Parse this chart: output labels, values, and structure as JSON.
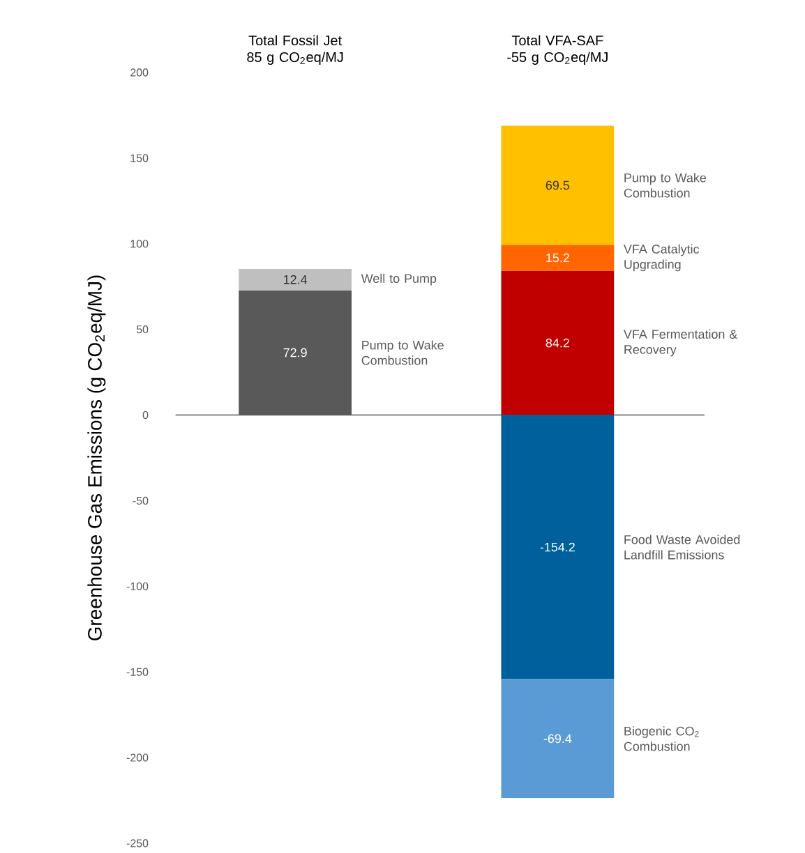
{
  "chart_data": {
    "type": "bar",
    "stacked": true,
    "data_labels": true,
    "categories": [
      "Total Fossil Jet 85 g CO$_{2}$eq/MJ",
      "Total VFA-SAF -55 g CO$_{2}$eq/MJ"
    ],
    "ylabel": "Greenhouse Gas Emissions (g CO$_{2}$eq/MJ)",
    "ylim": [
      -250,
      200
    ],
    "yticks": [
      -250,
      -200,
      -150,
      -100,
      -50,
      0,
      50,
      100,
      150,
      200
    ],
    "series": [
      {
        "name": "Pump to Wake Combustion",
        "color": "#595959",
        "values": [
          72.9,
          null
        ]
      },
      {
        "name": "Well to Pump",
        "color": "#bfbfbf",
        "values": [
          12.4,
          null
        ]
      },
      {
        "name": "VFA Fermentation & Recovery",
        "color": "#c00000",
        "values": [
          null,
          84.2
        ]
      },
      {
        "name": "VFA Catalytic Upgrading",
        "color": "#ff6600",
        "values": [
          null,
          15.2
        ]
      },
      {
        "name": "Pump to Wake Combustion",
        "color": "#ffc000",
        "values": [
          null,
          69.5
        ]
      },
      {
        "name": "Food Waste Avoided Landfill Emissions",
        "color": "#00609c",
        "values": [
          null,
          -154.2
        ]
      },
      {
        "name": "Biogenic CO$_{2}$ Combustion",
        "color": "#5b9bd5",
        "values": [
          null,
          -69.4
        ]
      }
    ]
  }
}
